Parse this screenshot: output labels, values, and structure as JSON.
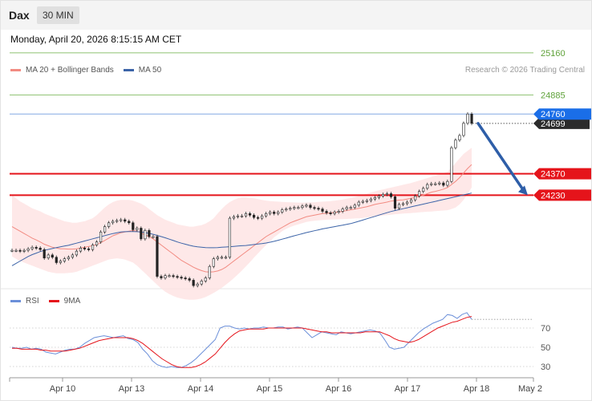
{
  "header": {
    "symbol": "Dax",
    "timeframe": "30 MIN",
    "datetime": "Monday, April 20, 2026 8:15:15 AM CET"
  },
  "credit": "Research © 2026 Trading Central",
  "colors": {
    "resistance": "#8dc06f",
    "support": "#e5141b",
    "last_price": "#1a6ee8",
    "ma20_band": "#f28b82",
    "band_fill": "#fde0e0",
    "ma50": "#3c64a8",
    "arrow": "#2e5ea8",
    "candle_up": "#2f8a2f",
    "candle_down": "#c41414",
    "rsi": "#6b8fd9",
    "rsi_ma": "#e5141b"
  },
  "chart_data": [
    {
      "type": "candlestick",
      "title": "",
      "legend": [
        {
          "name": "MA 20 + Bollinger Bands",
          "color": "#f28b82"
        },
        {
          "name": "MA 50",
          "color": "#3c64a8"
        }
      ],
      "ylim": [
        23630,
        25290
      ],
      "x_ticks": [
        "Apr 10",
        "Apr 13",
        "Apr 14",
        "Apr 15",
        "Apr 16",
        "Apr 17",
        "Apr 18",
        "May 2"
      ],
      "levels": [
        {
          "label": "25160",
          "value": 25160,
          "kind": "resistance"
        },
        {
          "label": "24885",
          "value": 24885,
          "kind": "resistance"
        },
        {
          "label": "24760",
          "value": 24760,
          "kind": "last_price"
        },
        {
          "label": "24699",
          "value": 24699,
          "kind": "current"
        },
        {
          "label": "24370",
          "value": 24370,
          "kind": "support"
        },
        {
          "label": "24230",
          "value": 24230,
          "kind": "support"
        }
      ],
      "candles_close": [
        23870,
        23870,
        23865,
        23870,
        23880,
        23890,
        23885,
        23875,
        23820,
        23840,
        23825,
        23790,
        23800,
        23815,
        23825,
        23840,
        23865,
        23885,
        23880,
        23875,
        23905,
        23925,
        23990,
        24025,
        24050,
        24060,
        24065,
        24070,
        24060,
        24050,
        24005,
        24015,
        23945,
        24000,
        23960,
        23960,
        23700,
        23690,
        23705,
        23705,
        23700,
        23695,
        23690,
        23685,
        23675,
        23640,
        23650,
        23670,
        23690,
        23765,
        23815,
        23825,
        23825,
        23825,
        24080,
        24090,
        24095,
        24095,
        24110,
        24100,
        24085,
        24080,
        24095,
        24110,
        24120,
        24110,
        24120,
        24135,
        24140,
        24145,
        24150,
        24150,
        24160,
        24165,
        24150,
        24145,
        24140,
        24125,
        24115,
        24110,
        24120,
        24125,
        24140,
        24150,
        24150,
        24165,
        24185,
        24190,
        24195,
        24205,
        24215,
        24225,
        24235,
        24240,
        24220,
        24145,
        24170,
        24175,
        24185,
        24200,
        24225,
        24255,
        24275,
        24300,
        24305,
        24305,
        24310,
        24295,
        24320,
        24540,
        24590,
        24620,
        24700,
        24760,
        24699
      ],
      "ma20": [
        24025,
        24010,
        23995,
        23980,
        23965,
        23950,
        23938,
        23925,
        23910,
        23900,
        23890,
        23885,
        23880,
        23880,
        23878,
        23878,
        23880,
        23885,
        23890,
        23895,
        23900,
        23908,
        23920,
        23935,
        23950,
        23965,
        23975,
        23985,
        23990,
        23995,
        24000,
        23995,
        23985,
        23970,
        23960,
        23945,
        23925,
        23905,
        23885,
        23865,
        23845,
        23825,
        23805,
        23790,
        23775,
        23760,
        23748,
        23738,
        23730,
        23728,
        23730,
        23735,
        23745,
        23760,
        23780,
        23800,
        23820,
        23840,
        23860,
        23880,
        23900,
        23920,
        23940,
        23960,
        23975,
        23990,
        24005,
        24020,
        24035,
        24050,
        24060,
        24070,
        24080,
        24090,
        24095,
        24100,
        24105,
        24110,
        24112,
        24115,
        24118,
        24120,
        24125,
        24130,
        24135,
        24140,
        24145,
        24150,
        24155,
        24162,
        24170,
        24175,
        24180,
        24185,
        24192,
        24195,
        24198,
        24200,
        24205,
        24210,
        24215,
        24222,
        24230,
        24240,
        24250,
        24255,
        24262,
        24270,
        24280,
        24300,
        24320,
        24345,
        24375,
        24405,
        24430
      ],
      "band_upper": [
        24230,
        24210,
        24190,
        24175,
        24160,
        24145,
        24135,
        24125,
        24110,
        24100,
        24090,
        24080,
        24070,
        24060,
        24055,
        24050,
        24050,
        24055,
        24060,
        24070,
        24080,
        24100,
        24125,
        24150,
        24170,
        24185,
        24195,
        24200,
        24200,
        24200,
        24195,
        24185,
        24175,
        24160,
        24140,
        24120,
        24100,
        24085,
        24070,
        24060,
        24050,
        24040,
        24035,
        24030,
        24025,
        24025,
        24030,
        24035,
        24045,
        24060,
        24080,
        24110,
        24140,
        24165,
        24185,
        24200,
        24210,
        24215,
        24215,
        24212,
        24210,
        24205,
        24200,
        24195,
        24192,
        24190,
        24188,
        24186,
        24185,
        24184,
        24183,
        24182,
        24182,
        24182,
        24183,
        24184,
        24186,
        24188,
        24190,
        24192,
        24195,
        24198,
        24202,
        24207,
        24212,
        24218,
        24225,
        24232,
        24240,
        24248,
        24255,
        24262,
        24268,
        24274,
        24280,
        24286,
        24292,
        24298,
        24304,
        24310,
        24318,
        24326,
        24334,
        24342,
        24350,
        24358,
        24366,
        24374,
        24382,
        24410,
        24440,
        24470,
        24500,
        24520,
        24540
      ],
      "band_lower": [
        23830,
        23815,
        23800,
        23790,
        23780,
        23770,
        23760,
        23750,
        23740,
        23730,
        23725,
        23720,
        23720,
        23720,
        23722,
        23725,
        23730,
        23740,
        23750,
        23760,
        23770,
        23780,
        23790,
        23800,
        23810,
        23815,
        23818,
        23815,
        23810,
        23800,
        23790,
        23770,
        23745,
        23720,
        23695,
        23670,
        23645,
        23620,
        23600,
        23585,
        23572,
        23562,
        23555,
        23550,
        23548,
        23548,
        23550,
        23556,
        23565,
        23578,
        23592,
        23608,
        23625,
        23645,
        23665,
        23688,
        23712,
        23738,
        23765,
        23793,
        23822,
        23850,
        23878,
        23905,
        23930,
        23955,
        23975,
        23995,
        24010,
        24022,
        24032,
        24040,
        24048,
        24055,
        24060,
        24063,
        24066,
        24068,
        24070,
        24071,
        24072,
        24073,
        24074,
        24075,
        24076,
        24078,
        24080,
        24082,
        24085,
        24088,
        24091,
        24094,
        24097,
        24100,
        24103,
        24106,
        24108,
        24110,
        24112,
        24114,
        24116,
        24118,
        24120,
        24122,
        24124,
        24126,
        24128,
        24130,
        24132,
        24140,
        24150,
        24170,
        24200,
        24240,
        24280
      ],
      "ma50": [
        23770,
        23785,
        23800,
        23815,
        23830,
        23842,
        23852,
        23862,
        23870,
        23876,
        23882,
        23888,
        23893,
        23898,
        23903,
        23910,
        23917,
        23924,
        23931,
        23938,
        23945,
        23952,
        23959,
        23966,
        23973,
        23980,
        23985,
        23990,
        23992,
        23993,
        23993,
        23992,
        23990,
        23986,
        23981,
        23975,
        23968,
        23960,
        23952,
        23943,
        23934,
        23925,
        23917,
        23910,
        23903,
        23897,
        23893,
        23890,
        23888,
        23887,
        23887,
        23888,
        23890,
        23892,
        23894,
        23896,
        23898,
        23900,
        23902,
        23905,
        23908,
        23911,
        23914,
        23918,
        23923,
        23929,
        23936,
        23943,
        23950,
        23958,
        23965,
        23972,
        23979,
        23986,
        23992,
        23998,
        24004,
        24010,
        24015,
        24020,
        24025,
        24030,
        24035,
        24040,
        24045,
        24052,
        24060,
        24068,
        24076,
        24084,
        24092,
        24100,
        24108,
        24116,
        24124,
        24130,
        24136,
        24142,
        24148,
        24154,
        24160,
        24166,
        24172,
        24178,
        24184,
        24190,
        24196,
        24202,
        24208,
        24214,
        24220,
        24226,
        24232,
        24238,
        24244
      ]
    },
    {
      "type": "line",
      "title": "",
      "legend": [
        {
          "name": "RSI",
          "color": "#6b8fd9"
        },
        {
          "name": "9MA",
          "color": "#e5141b"
        }
      ],
      "ylim": [
        20,
        90
      ],
      "y_ticks": [
        "70",
        "50",
        "30"
      ],
      "series": [
        {
          "name": "RSI",
          "values": [
            50,
            49,
            49,
            50,
            48,
            49,
            48,
            45,
            44,
            43,
            45,
            47,
            48,
            48,
            50,
            54,
            57,
            60,
            61,
            62,
            61,
            60,
            61,
            62,
            59,
            58,
            55,
            48,
            43,
            36,
            32,
            30,
            29,
            30,
            29,
            29,
            31,
            34,
            38,
            43,
            48,
            53,
            58,
            70,
            72,
            72,
            70,
            69,
            70,
            69,
            70,
            70,
            71,
            70,
            70,
            71,
            71,
            69,
            70,
            71,
            70,
            65,
            60,
            63,
            66,
            65,
            64,
            63,
            66,
            65,
            64,
            65,
            66,
            67,
            68,
            67,
            65,
            58,
            50,
            48,
            49,
            50,
            55,
            60,
            65,
            69,
            72,
            75,
            77,
            79,
            84,
            83,
            80,
            84,
            86,
            79
          ],
          "x_count_note": ""
        },
        {
          "name": "9MA",
          "values": [
            49,
            49,
            48,
            48,
            48,
            48,
            47,
            47,
            46,
            46,
            46,
            46,
            47,
            48,
            49,
            51,
            53,
            55,
            57,
            58,
            59,
            60,
            60,
            60,
            60,
            59,
            57,
            54,
            50,
            46,
            42,
            38,
            35,
            32,
            30,
            29,
            29,
            29,
            30,
            32,
            35,
            39,
            43,
            49,
            55,
            60,
            64,
            67,
            68,
            69,
            69,
            69,
            69,
            70,
            70,
            70,
            70,
            70,
            70,
            70,
            70,
            69,
            68,
            67,
            66,
            66,
            65,
            65,
            65,
            65,
            65,
            65,
            65,
            66,
            66,
            66,
            66,
            64,
            62,
            59,
            57,
            56,
            55,
            56,
            58,
            61,
            64,
            67,
            70,
            72,
            74,
            76,
            77,
            79,
            81,
            82
          ]
        }
      ]
    }
  ]
}
